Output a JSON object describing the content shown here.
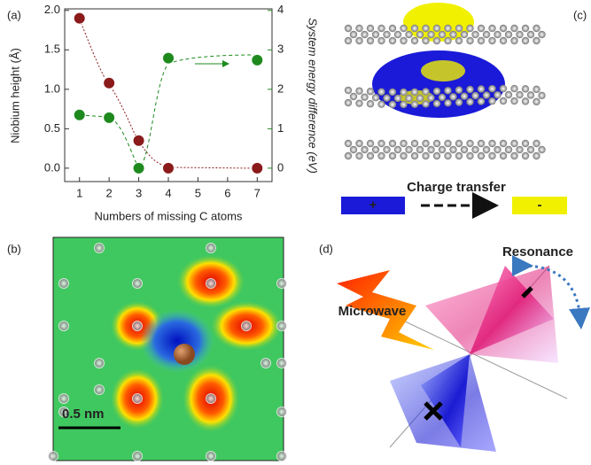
{
  "chart_data": {
    "type": "scatter",
    "panel_label": "(a)",
    "x_label": "Numbers of missing C atoms",
    "y_label": "Niobium height (Å)",
    "y2_label": "System energy difference  (eV)",
    "xlim": [
      0.5,
      7.5
    ],
    "xticks": [
      1,
      2,
      3,
      4,
      5,
      6,
      7
    ],
    "ylim": [
      -0.17,
      2.02
    ],
    "yticks": [
      {
        "value": 0,
        "label": "0.0"
      },
      0.5,
      {
        "value": 1,
        "label": "1.0"
      },
      1.5,
      {
        "value": 2,
        "label": "2.0"
      }
    ],
    "y2lim": [
      -0.34,
      4.04
    ],
    "y2ticks": [
      0,
      1,
      2,
      3,
      4
    ],
    "y2_color": "#1e8a1e",
    "series": [
      {
        "color": "#8b1a1a",
        "x": [
          1,
          2,
          3,
          4,
          7
        ],
        "values": [
          1.9,
          1.08,
          0.35,
          0,
          0
        ]
      },
      {
        "color": "#1e8a1e",
        "axis": "y2",
        "x": [
          1,
          2,
          3,
          4,
          7
        ],
        "values": [
          1.35,
          1.28,
          0,
          2.79,
          2.74
        ]
      }
    ]
  },
  "panels": {
    "b": {
      "label": "(b)",
      "scale_bar": "0.5 nm"
    },
    "c": {
      "label": "(c)",
      "title": "Charge transfer",
      "plus": "+",
      "minus": "-"
    },
    "d": {
      "label": "(d)",
      "resonance": "Resonance",
      "microwave": "Microwave"
    }
  }
}
